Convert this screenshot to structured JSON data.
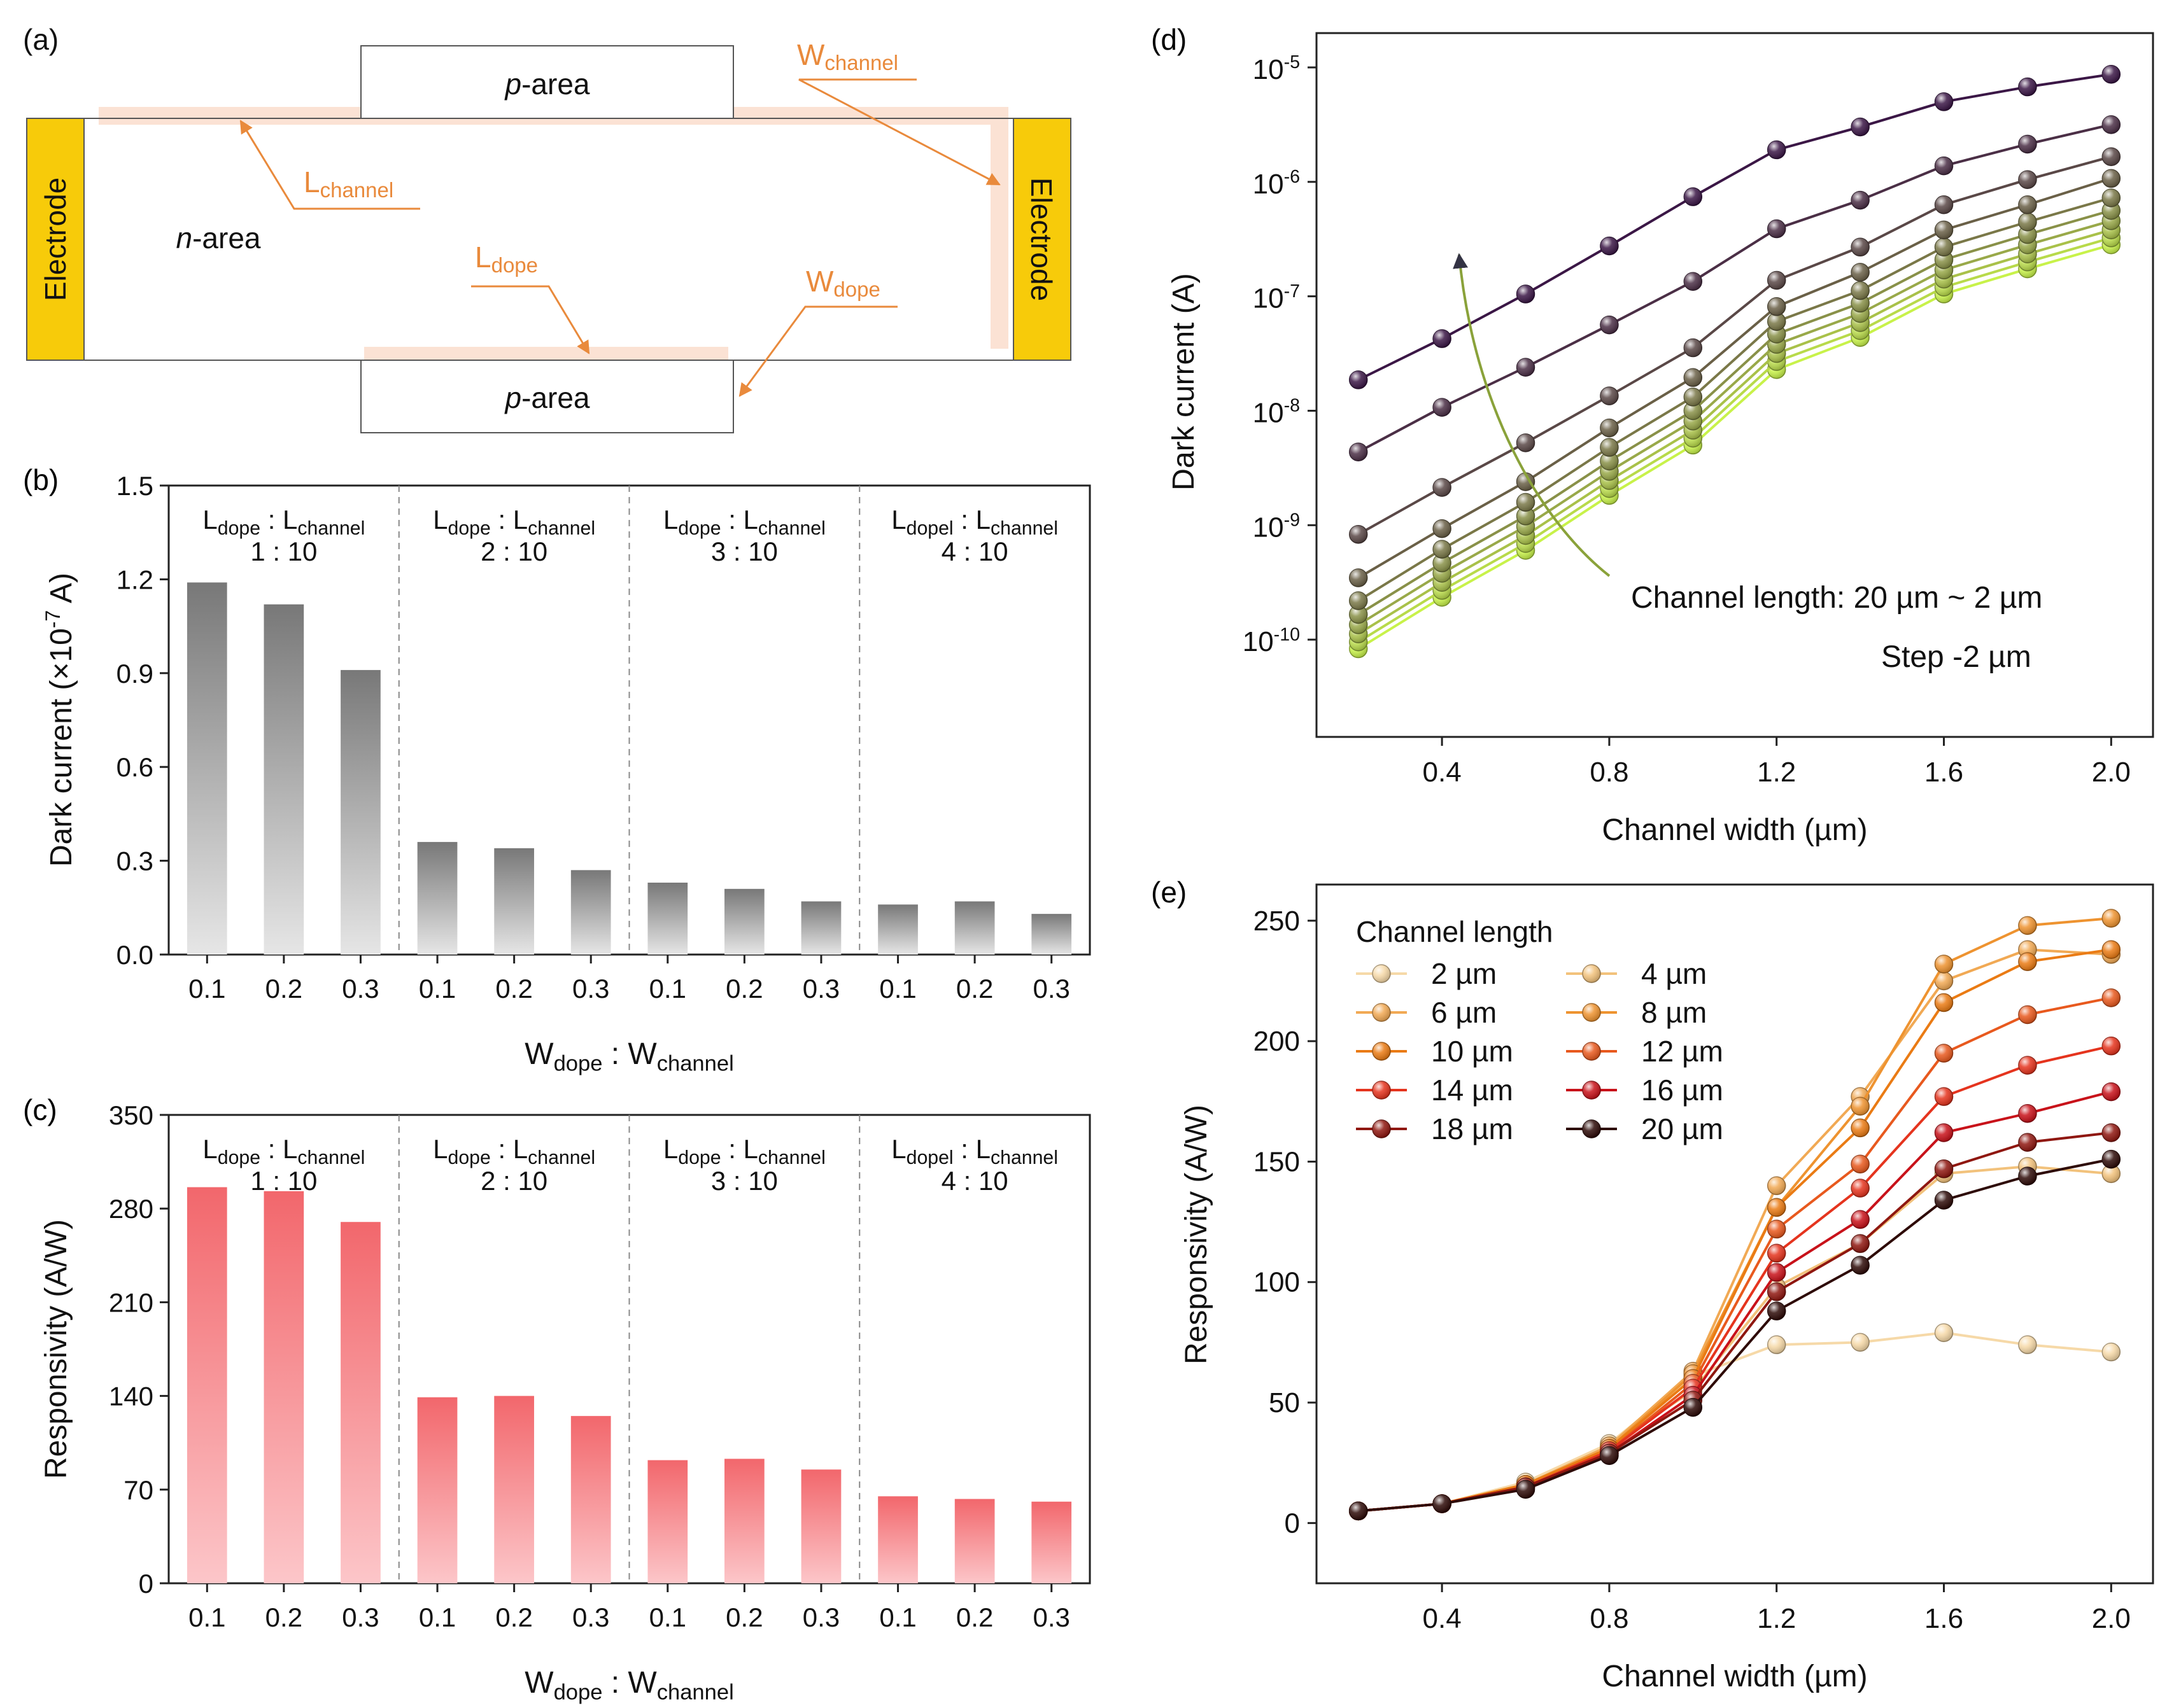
{
  "colors": {
    "electrode": "#f7cb0a",
    "annotation": "#e98a3c",
    "highlight": "#fbe2d4",
    "axis": "#222222",
    "darkBar": "#7a7a7a",
    "respBar": "#f26d72",
    "arrow": "#8aa23a",
    "darkLow": "#c8f24a",
    "darkHigh": "#3b1746"
  },
  "panel_a": {
    "label": "(a)",
    "electrode": "Electrode",
    "p_area_italic": "p",
    "p_area_rest": "-area",
    "n_area_italic": "n",
    "n_area_rest": "-area",
    "w_channel": {
      "main": "W",
      "sub": "channel"
    },
    "l_channel": {
      "main": "L",
      "sub": "channel"
    },
    "l_dope": {
      "main": "L",
      "sub": "dope"
    },
    "w_dope": {
      "main": "W",
      "sub": "dope"
    }
  },
  "chart_data": [
    {
      "panel": "(b)",
      "type": "bar",
      "ylabel": "Dark current (×10⁻⁷ A)",
      "ylabel_main": "Dark current (×10",
      "ylabel_exp": "-7",
      "ylabel_tail": " A)",
      "xlabel": {
        "main1": "W",
        "sub1": "dope",
        "sep": " : W",
        "sub2": "channel"
      },
      "ylim": [
        0,
        1.5
      ],
      "yticks": [
        0,
        0.3,
        0.6,
        0.9,
        1.2,
        1.5
      ],
      "ytick_labels": [
        "0.0",
        "0.3",
        "0.6",
        "0.9",
        "1.2",
        "1.5"
      ],
      "categories": [
        "0.1",
        "0.2",
        "0.3",
        "0.1",
        "0.2",
        "0.3",
        "0.1",
        "0.2",
        "0.3",
        "0.1",
        "0.2",
        "0.3"
      ],
      "groups": [
        {
          "l1": "L",
          "s1": "dope",
          "sep": " : L",
          "s2": "channel",
          "ratio": "1 : 10",
          "values": [
            1.19,
            1.12,
            0.91
          ]
        },
        {
          "l1": "L",
          "s1": "dope",
          "sep": " : L",
          "s2": "channel",
          "ratio": "2 : 10",
          "values": [
            0.36,
            0.34,
            0.27
          ]
        },
        {
          "l1": "L",
          "s1": "dope",
          "sep": " : L",
          "s2": "channel",
          "ratio": "3 : 10",
          "values": [
            0.23,
            0.21,
            0.17
          ]
        },
        {
          "l1": "L",
          "s1": "dopel",
          "sep": " : L",
          "s2": "channel",
          "ratio": "4 : 10",
          "values": [
            0.16,
            0.17,
            0.13
          ]
        }
      ]
    },
    {
      "panel": "(c)",
      "type": "bar",
      "ylabel": "Responsivity (A/W)",
      "xlabel": {
        "main1": "W",
        "sub1": "dope",
        "sep": " : W",
        "sub2": "channel"
      },
      "ylim": [
        0,
        350
      ],
      "yticks": [
        0,
        70,
        140,
        210,
        280,
        350
      ],
      "ytick_labels": [
        "0",
        "70",
        "140",
        "210",
        "280",
        "350"
      ],
      "categories": [
        "0.1",
        "0.2",
        "0.3",
        "0.1",
        "0.2",
        "0.3",
        "0.1",
        "0.2",
        "0.3",
        "0.1",
        "0.2",
        "0.3"
      ],
      "groups": [
        {
          "l1": "L",
          "s1": "dope",
          "sep": " : L",
          "s2": "channel",
          "ratio": "1 : 10",
          "values": [
            296,
            293,
            270
          ]
        },
        {
          "l1": "L",
          "s1": "dope",
          "sep": " : L",
          "s2": "channel",
          "ratio": "2 : 10",
          "values": [
            139,
            140,
            125
          ]
        },
        {
          "l1": "L",
          "s1": "dope",
          "sep": " : L",
          "s2": "channel",
          "ratio": "3 : 10",
          "values": [
            92,
            93,
            85
          ]
        },
        {
          "l1": "L",
          "s1": "dopel",
          "sep": " : L",
          "s2": "channel",
          "ratio": "4 : 10",
          "values": [
            65,
            63,
            61
          ]
        }
      ]
    },
    {
      "panel": "(d)",
      "type": "line",
      "yscale": "log",
      "ylabel": "Dark current (A)",
      "xlabel": "Channel width (µm)",
      "xlim": [
        0.1,
        2.1
      ],
      "ylim_exp": [
        -10.85,
        -4.7
      ],
      "xticks": [
        0.4,
        0.8,
        1.2,
        1.6,
        2.0
      ],
      "xtick_labels": [
        "0.4",
        "0.8",
        "1.2",
        "1.6",
        "2.0"
      ],
      "ytick_exps": [
        -10,
        -9,
        -8,
        -7,
        -6,
        -5
      ],
      "ytick_labels": [
        "-10",
        "-9",
        "-8",
        "-7",
        "-6",
        "-5"
      ],
      "annotation1": "Channel length: 20 µm ~ 2 µm",
      "annotation2": "Step -2 µm",
      "x": [
        0.2,
        0.4,
        0.6,
        0.8,
        1.0,
        1.2,
        1.4,
        1.6,
        1.8,
        2.0
      ],
      "series": [
        {
          "name": "20 µm",
          "log10": [
            -10.08,
            -9.63,
            -9.22,
            -8.74,
            -8.3,
            -7.64,
            -7.36,
            -6.98,
            -6.76,
            -6.55
          ]
        },
        {
          "name": "18 µm",
          "log10": [
            -10.02,
            -9.57,
            -9.16,
            -8.68,
            -8.24,
            -7.57,
            -7.3,
            -6.92,
            -6.7,
            -6.49
          ]
        },
        {
          "name": "16 µm",
          "log10": [
            -9.95,
            -9.5,
            -9.09,
            -8.61,
            -8.17,
            -7.5,
            -7.23,
            -6.85,
            -6.63,
            -6.42
          ]
        },
        {
          "name": "14 µm",
          "log10": [
            -9.87,
            -9.42,
            -9.01,
            -8.53,
            -8.09,
            -7.42,
            -7.15,
            -6.77,
            -6.55,
            -6.34
          ]
        },
        {
          "name": "12 µm",
          "log10": [
            -9.78,
            -9.33,
            -8.92,
            -8.44,
            -8.0,
            -7.33,
            -7.06,
            -6.68,
            -6.46,
            -6.25
          ]
        },
        {
          "name": "10 µm",
          "log10": [
            -9.66,
            -9.21,
            -8.8,
            -8.32,
            -7.88,
            -7.22,
            -6.95,
            -6.57,
            -6.35,
            -6.14
          ]
        },
        {
          "name": "8 µm",
          "log10": [
            -9.46,
            -9.03,
            -8.62,
            -8.15,
            -7.71,
            -7.09,
            -6.79,
            -6.42,
            -6.2,
            -5.97
          ]
        },
        {
          "name": "6 µm",
          "log10": [
            -9.08,
            -8.67,
            -8.28,
            -7.87,
            -7.45,
            -6.86,
            -6.57,
            -6.2,
            -5.98,
            -5.78
          ]
        },
        {
          "name": "4 µm",
          "log10": [
            -8.36,
            -7.97,
            -7.62,
            -7.25,
            -6.87,
            -6.41,
            -6.16,
            -5.86,
            -5.67,
            -5.5
          ]
        },
        {
          "name": "2 µm",
          "log10": [
            -7.73,
            -7.37,
            -6.98,
            -6.56,
            -6.13,
            -5.72,
            -5.52,
            -5.3,
            -5.17,
            -5.06
          ]
        }
      ]
    },
    {
      "panel": "(e)",
      "type": "line",
      "ylabel": "Responsivity (A/W)",
      "xlabel": "Channel width (µm)",
      "xlim": [
        0.1,
        2.1
      ],
      "ylim": [
        -25,
        265
      ],
      "xticks": [
        0.4,
        0.8,
        1.2,
        1.6,
        2.0
      ],
      "xtick_labels": [
        "0.4",
        "0.8",
        "1.2",
        "1.6",
        "2.0"
      ],
      "yticks": [
        0,
        50,
        100,
        150,
        200,
        250
      ],
      "ytick_labels": [
        "0",
        "50",
        "100",
        "150",
        "200",
        "250"
      ],
      "legend_title": "Channel length",
      "legend_position": "top-left",
      "x": [
        0.2,
        0.4,
        0.6,
        0.8,
        1.0,
        1.2,
        1.4,
        1.6,
        1.8,
        2.0
      ],
      "series": [
        {
          "name": "2 µm",
          "color": "#f6d9a8",
          "values": [
            5,
            8,
            17,
            33,
            61,
            74,
            75,
            79,
            74,
            71
          ]
        },
        {
          "name": "4 µm",
          "color": "#f2c27c",
          "values": [
            5,
            8,
            16,
            32,
            55,
            98,
            116,
            145,
            148,
            145
          ]
        },
        {
          "name": "6 µm",
          "color": "#f1a954",
          "values": [
            5,
            8,
            16,
            32,
            63,
            140,
            177,
            225,
            238,
            236
          ]
        },
        {
          "name": "8 µm",
          "color": "#ee9330",
          "values": [
            5,
            8,
            16,
            31,
            62,
            131,
            173,
            232,
            248,
            251
          ]
        },
        {
          "name": "10 µm",
          "color": "#ea7b14",
          "values": [
            5,
            8,
            16,
            31,
            60,
            131,
            164,
            216,
            233,
            238
          ]
        },
        {
          "name": "12 µm",
          "color": "#e8591e",
          "values": [
            5,
            8,
            15,
            30,
            58,
            122,
            149,
            195,
            211,
            218
          ]
        },
        {
          "name": "14 µm",
          "color": "#e5341e",
          "values": [
            5,
            8,
            15,
            30,
            56,
            112,
            139,
            177,
            190,
            198
          ]
        },
        {
          "name": "16 µm",
          "color": "#c8121a",
          "values": [
            5,
            8,
            15,
            29,
            53,
            104,
            126,
            162,
            170,
            179
          ]
        },
        {
          "name": "18 µm",
          "color": "#8f1710",
          "values": [
            5,
            8,
            15,
            29,
            51,
            96,
            116,
            147,
            158,
            162
          ]
        },
        {
          "name": "20 µm",
          "color": "#2e0b08",
          "values": [
            5,
            8,
            14,
            28,
            48,
            88,
            107,
            134,
            144,
            151
          ]
        }
      ]
    }
  ]
}
